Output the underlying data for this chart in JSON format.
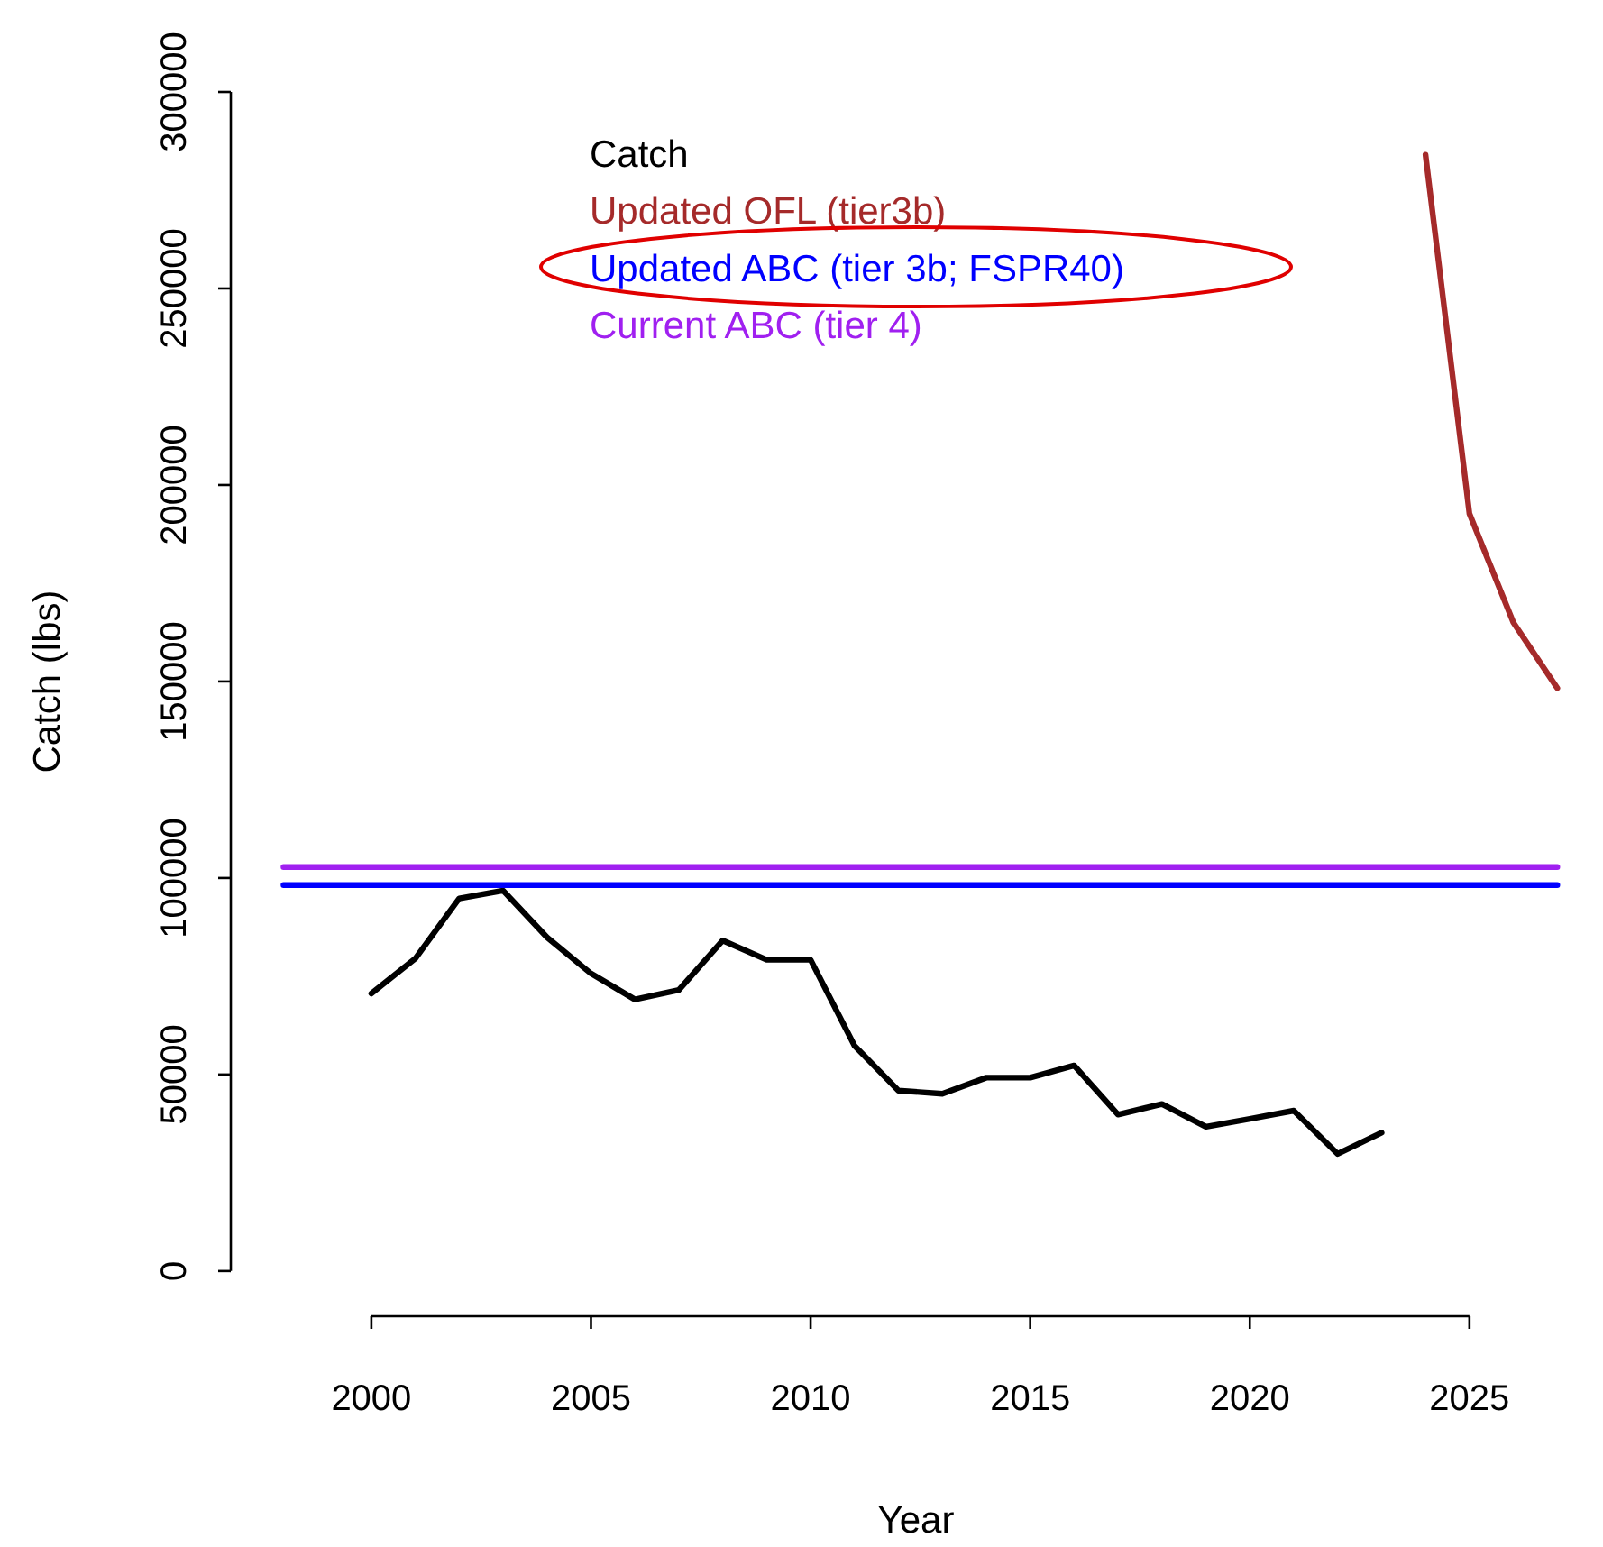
{
  "chart_data": {
    "type": "line",
    "xlabel": "Year",
    "ylabel": "Catch (lbs)",
    "xlim": [
      1996.8,
      2028
    ],
    "ylim": [
      -11500,
      300000
    ],
    "xticks": [
      2000,
      2005,
      2010,
      2015,
      2020,
      2025
    ],
    "yticks": [
      0,
      50000,
      100000,
      150000,
      200000,
      250000,
      300000
    ],
    "grid": false,
    "legend": "top left",
    "marker": "none",
    "line_style": "solid",
    "series": [
      {
        "name": "Catch",
        "color": "#000000",
        "x": [
          2000,
          2001,
          2002,
          2003,
          2004,
          2005,
          2006,
          2007,
          2008,
          2009,
          2010,
          2011,
          2012,
          2013,
          2014,
          2015,
          2016,
          2017,
          2018,
          2019,
          2020,
          2021,
          2022,
          2023
        ],
        "values": [
          70600,
          79500,
          94800,
          96800,
          84900,
          75700,
          69100,
          71500,
          84100,
          79200,
          79200,
          57300,
          45900,
          45100,
          49200,
          49200,
          52300,
          39800,
          42500,
          36700,
          38700,
          40800,
          29800,
          35200
        ]
      },
      {
        "name": "Updated OFL (tier3b)",
        "color": "#a52a2a",
        "x": [
          2024,
          2025,
          2026,
          2027
        ],
        "values": [
          284000,
          192700,
          165000,
          148300
        ]
      },
      {
        "name": "Updated ABC (tier 3b; FSPR40)",
        "color": "#0000ff",
        "x": [
          1998,
          2027
        ],
        "values": [
          98200,
          98200
        ]
      },
      {
        "name": "Current ABC (tier 4)",
        "color": "#a020f0",
        "x": [
          1998,
          2027
        ],
        "values": [
          102800,
          102800
        ]
      }
    ]
  }
}
